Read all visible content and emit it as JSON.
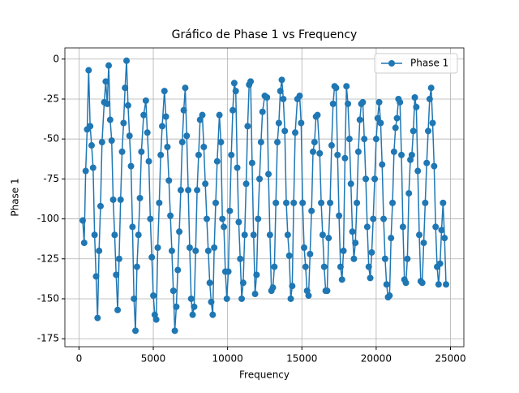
{
  "chart_data": {
    "type": "line",
    "title": "Gráfico de Phase 1 vs Frequency",
    "x_label": "Frequency",
    "y_label": "Phase 1",
    "x": [
      250,
      350,
      450,
      550,
      650,
      750,
      850,
      950,
      1050,
      1150,
      1250,
      1350,
      1450,
      1550,
      1700,
      1800,
      1900,
      2000,
      2100,
      2200,
      2300,
      2400,
      2500,
      2600,
      2700,
      2800,
      2900,
      3000,
      3100,
      3200,
      3300,
      3400,
      3500,
      3600,
      3700,
      3800,
      3900,
      4000,
      4100,
      4200,
      4350,
      4500,
      4600,
      4700,
      4800,
      4900,
      5000,
      5100,
      5200,
      5300,
      5400,
      5500,
      5600,
      5750,
      5850,
      5950,
      6050,
      6150,
      6250,
      6350,
      6450,
      6550,
      6650,
      6750,
      6850,
      6950,
      7050,
      7150,
      7250,
      7350,
      7450,
      7550,
      7650,
      7750,
      7850,
      7950,
      8050,
      8150,
      8300,
      8400,
      8500,
      8600,
      8700,
      8800,
      8900,
      9000,
      9100,
      9200,
      9300,
      9450,
      9550,
      9650,
      9750,
      9850,
      9950,
      10050,
      10150,
      10250,
      10350,
      10450,
      10550,
      10650,
      10750,
      10850,
      10950,
      11050,
      11150,
      11250,
      11350,
      11450,
      11550,
      11650,
      11750,
      11850,
      11950,
      12050,
      12150,
      12250,
      12350,
      12500,
      12650,
      12750,
      12850,
      12950,
      13050,
      13150,
      13250,
      13350,
      13450,
      13550,
      13650,
      13750,
      13850,
      13950,
      14050,
      14150,
      14250,
      14350,
      14450,
      14550,
      14700,
      14850,
      14950,
      15050,
      15150,
      15250,
      15350,
      15450,
      15550,
      15650,
      15750,
      15850,
      15950,
      16050,
      16200,
      16300,
      16400,
      16500,
      16600,
      16700,
      16800,
      16900,
      17000,
      17100,
      17200,
      17300,
      17400,
      17500,
      17600,
      17700,
      17800,
      17900,
      18000,
      18100,
      18200,
      18300,
      18400,
      18500,
      18600,
      18700,
      18800,
      18900,
      19000,
      19100,
      19200,
      19300,
      19400,
      19500,
      19600,
      19700,
      19800,
      19900,
      20000,
      20100,
      20200,
      20300,
      20400,
      20500,
      20600,
      20700,
      20800,
      20900,
      21000,
      21100,
      21200,
      21300,
      21400,
      21500,
      21600,
      21700,
      21800,
      21900,
      22000,
      22100,
      22200,
      22300,
      22400,
      22500,
      22600,
      22700,
      22800,
      22900,
      23000,
      23100,
      23200,
      23300,
      23400,
      23500,
      23600,
      23700,
      23800,
      23900,
      24000,
      24100,
      24200,
      24300,
      24400,
      24500,
      24600,
      24700
    ],
    "series": [
      {
        "name": "Phase 1",
        "color": "#1f77b4",
        "values": [
          -101,
          -115,
          -70,
          -44,
          -7,
          -42,
          -54,
          -68,
          -110,
          -136,
          -162,
          -120,
          -92,
          -52,
          -27,
          -14,
          -28,
          -4,
          -38,
          -51,
          -88,
          -110,
          -135,
          -157,
          -125,
          -88,
          -58,
          -40,
          -18,
          -1,
          -29,
          -48,
          -67,
          -105,
          -150,
          -170,
          -130,
          -110,
          -87,
          -58,
          -35,
          -26,
          -46,
          -64,
          -100,
          -124,
          -148,
          -160,
          -163,
          -118,
          -90,
          -60,
          -42,
          -20,
          -36,
          -55,
          -76,
          -98,
          -120,
          -145,
          -170,
          -155,
          -132,
          -108,
          -82,
          -52,
          -32,
          -18,
          -48,
          -82,
          -118,
          -150,
          -160,
          -155,
          -120,
          -82,
          -60,
          -38,
          -35,
          -55,
          -78,
          -100,
          -120,
          -140,
          -152,
          -160,
          -118,
          -90,
          -64,
          -35,
          -52,
          -100,
          -105,
          -133,
          -150,
          -133,
          -95,
          -60,
          -32,
          -15,
          -20,
          -68,
          -102,
          -125,
          -150,
          -140,
          -110,
          -78,
          -42,
          -16,
          -14,
          -65,
          -110,
          -147,
          -135,
          -100,
          -75,
          -52,
          -33,
          -23,
          -24,
          -72,
          -110,
          -145,
          -143,
          -130,
          -90,
          -52,
          -40,
          -20,
          -13,
          -25,
          -45,
          -90,
          -110,
          -123,
          -150,
          -142,
          -90,
          -46,
          -25,
          -23,
          -40,
          -90,
          -118,
          -130,
          -145,
          -148,
          -122,
          -95,
          -58,
          -52,
          -36,
          -35,
          -59,
          -90,
          -110,
          -130,
          -145,
          -145,
          -112,
          -90,
          -54,
          -28,
          -17,
          -18,
          -60,
          -98,
          -130,
          -138,
          -120,
          -62,
          -17,
          -28,
          -50,
          -78,
          -108,
          -125,
          -115,
          -90,
          -58,
          -38,
          -28,
          -27,
          -50,
          -75,
          -105,
          -130,
          -137,
          -121,
          -100,
          -75,
          -50,
          -37,
          -27,
          -40,
          -66,
          -100,
          -125,
          -141,
          -149,
          -148,
          -112,
          -90,
          -58,
          -43,
          -37,
          -25,
          -27,
          -60,
          -105,
          -138,
          -140,
          -125,
          -84,
          -63,
          -60,
          -45,
          -24,
          -30,
          -70,
          -110,
          -139,
          -140,
          -115,
          -90,
          -65,
          -45,
          -25,
          -18,
          -40,
          -67,
          -105,
          -130,
          -141,
          -128,
          -107,
          -90,
          -112,
          -141
        ]
      }
    ],
    "xlim": [
      -950,
      25900
    ],
    "ylim": [
      -180,
      7
    ],
    "xticks": [
      0,
      5000,
      10000,
      15000,
      20000,
      25000
    ],
    "yticks": [
      0,
      -25,
      -50,
      -75,
      -100,
      -125,
      -150,
      -175
    ],
    "grid": true,
    "legend": "upper right",
    "marker": "o"
  }
}
